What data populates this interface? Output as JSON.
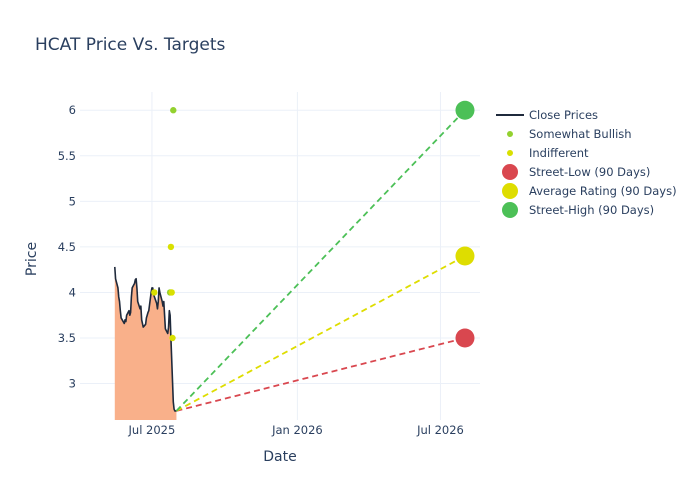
{
  "chart_data": {
    "type": "line",
    "title": "HCAT Price Vs. Targets",
    "xlabel": "Date",
    "ylabel": "Price",
    "xlim": [
      "2025-04-01",
      "2026-08-20"
    ],
    "ylim": [
      2.6,
      6.2
    ],
    "x_ticks": [
      {
        "date": "2025-07-01",
        "label": "Jul 2025"
      },
      {
        "date": "2026-01-01",
        "label": "Jan 2026"
      },
      {
        "date": "2026-07-01",
        "label": "Jul 2026"
      }
    ],
    "y_ticks": [
      {
        "value": 3,
        "label": "3"
      },
      {
        "value": 3.5,
        "label": "3.5"
      },
      {
        "value": 4,
        "label": "4"
      },
      {
        "value": 4.5,
        "label": "4.5"
      },
      {
        "value": 5,
        "label": "5"
      },
      {
        "value": 5.5,
        "label": "5.5"
      },
      {
        "value": 6,
        "label": "6"
      }
    ],
    "grid": true,
    "legend_position": "right",
    "series": [
      {
        "name": "Close Prices",
        "kind": "line-area",
        "color": "#1f2a3c",
        "fill_color": "#f9b08a",
        "points": [
          [
            "2025-05-15",
            4.28
          ],
          [
            "2025-05-16",
            4.15
          ],
          [
            "2025-05-19",
            4.05
          ],
          [
            "2025-05-20",
            3.95
          ],
          [
            "2025-05-21",
            3.9
          ],
          [
            "2025-05-22",
            3.8
          ],
          [
            "2025-05-23",
            3.72
          ],
          [
            "2025-05-27",
            3.66
          ],
          [
            "2025-05-28",
            3.7
          ],
          [
            "2025-05-29",
            3.68
          ],
          [
            "2025-05-30",
            3.75
          ],
          [
            "2025-06-02",
            3.8
          ],
          [
            "2025-06-03",
            3.75
          ],
          [
            "2025-06-04",
            3.78
          ],
          [
            "2025-06-05",
            3.95
          ],
          [
            "2025-06-06",
            4.05
          ],
          [
            "2025-06-09",
            4.1
          ],
          [
            "2025-06-10",
            4.14
          ],
          [
            "2025-06-11",
            4.15
          ],
          [
            "2025-06-12",
            4.05
          ],
          [
            "2025-06-13",
            3.9
          ],
          [
            "2025-06-16",
            3.82
          ],
          [
            "2025-06-17",
            3.85
          ],
          [
            "2025-06-18",
            3.7
          ],
          [
            "2025-06-20",
            3.62
          ],
          [
            "2025-06-23",
            3.65
          ],
          [
            "2025-06-24",
            3.72
          ],
          [
            "2025-06-25",
            3.75
          ],
          [
            "2025-06-26",
            3.78
          ],
          [
            "2025-06-27",
            3.8
          ],
          [
            "2025-06-30",
            4.0
          ],
          [
            "2025-07-01",
            4.05
          ],
          [
            "2025-07-02",
            4.05
          ],
          [
            "2025-07-03",
            3.98
          ],
          [
            "2025-07-07",
            3.88
          ],
          [
            "2025-07-08",
            3.82
          ],
          [
            "2025-07-09",
            3.9
          ],
          [
            "2025-07-10",
            4.05
          ],
          [
            "2025-07-11",
            4.0
          ],
          [
            "2025-07-14",
            3.9
          ],
          [
            "2025-07-15",
            3.85
          ],
          [
            "2025-07-16",
            3.9
          ],
          [
            "2025-07-17",
            3.75
          ],
          [
            "2025-07-18",
            3.6
          ],
          [
            "2025-07-21",
            3.55
          ],
          [
            "2025-07-22",
            3.62
          ],
          [
            "2025-07-23",
            3.8
          ],
          [
            "2025-07-24",
            3.75
          ],
          [
            "2025-07-25",
            3.5
          ],
          [
            "2025-07-28",
            2.8
          ],
          [
            "2025-07-29",
            2.72
          ],
          [
            "2025-07-30",
            2.7
          ],
          [
            "2025-07-31",
            2.7
          ],
          [
            "2025-08-01",
            2.7
          ]
        ]
      },
      {
        "name": "Somewhat Bullish",
        "kind": "markers",
        "color": "#93d12f",
        "points": [
          [
            "2025-07-28",
            6.0
          ],
          [
            "2025-07-24",
            4.0
          ]
        ]
      },
      {
        "name": "Indifferent",
        "kind": "markers",
        "color": "#d9e000",
        "points": [
          [
            "2025-07-25",
            4.5
          ],
          [
            "2025-07-26",
            4.0
          ],
          [
            "2025-07-27",
            3.5
          ],
          [
            "2025-07-04",
            4.0
          ]
        ]
      },
      {
        "name": "Street-Low (90 Days)",
        "kind": "target",
        "color": "#d9474f",
        "from": [
          "2025-08-01",
          2.7
        ],
        "to": [
          "2026-08-01",
          3.5
        ]
      },
      {
        "name": "Average Rating (90 Days)",
        "kind": "target",
        "color": "#dedd00",
        "from": [
          "2025-08-01",
          2.7
        ],
        "to": [
          "2026-08-01",
          4.4
        ]
      },
      {
        "name": "Street-High (90 Days)",
        "kind": "target",
        "color": "#4cc057",
        "from": [
          "2025-08-01",
          2.7
        ],
        "to": [
          "2026-08-01",
          6.0
        ]
      }
    ]
  }
}
